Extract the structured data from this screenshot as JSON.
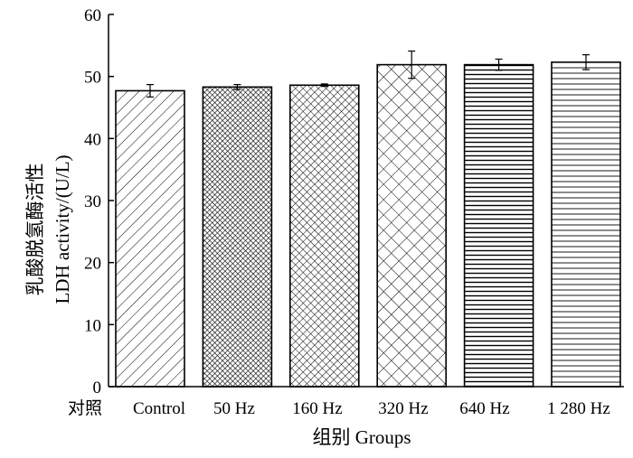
{
  "chart_data": {
    "type": "bar",
    "categories": [
      "Control",
      "50 Hz",
      "160 Hz",
      "320 Hz",
      "640 Hz",
      "1 280 Hz"
    ],
    "values": [
      47.7,
      48.3,
      48.6,
      51.9,
      51.9,
      52.3
    ],
    "errors": [
      1.0,
      0.4,
      0.2,
      2.2,
      0.9,
      1.2
    ],
    "patterns": [
      "diag-back",
      "crosshatch-fine",
      "crosshatch-medium",
      "crosshatch-coarse",
      "horizontal-dense",
      "horizontal-fine"
    ],
    "ylim": [
      0,
      60
    ],
    "yticks": [
      0,
      10,
      20,
      30,
      40,
      50,
      60
    ],
    "ylabel_cn": "乳酸脱氢酶活性",
    "ylabel_en": "LDH activity/(U/L)",
    "xlabel": "组别 Groups",
    "x_prefix_label": "对照",
    "grid": false,
    "bar_fill": "#ffffff",
    "stroke": "#000000"
  }
}
